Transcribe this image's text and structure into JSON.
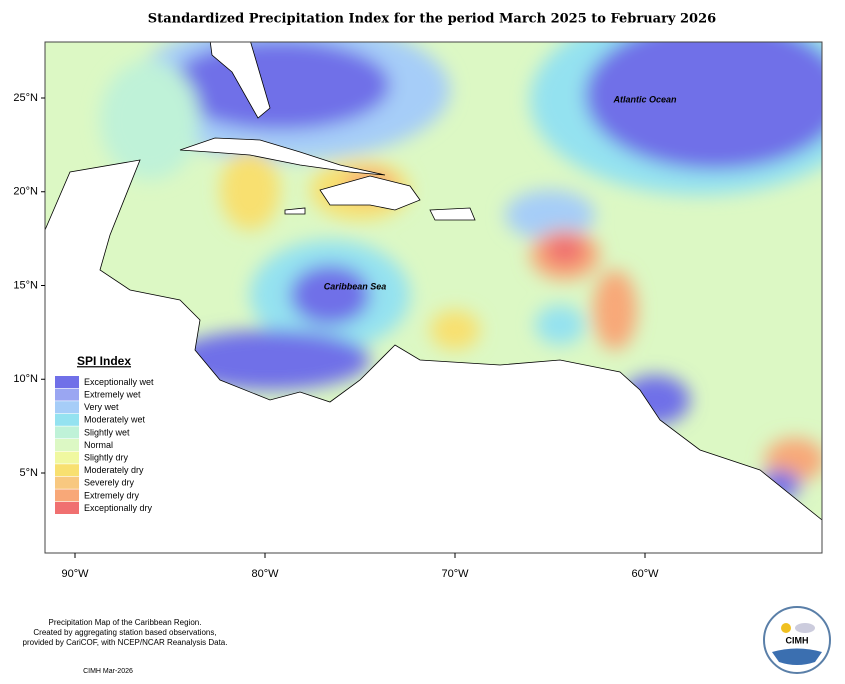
{
  "title": "Standardized Precipitation Index for the period March 2025 to February 2026",
  "map_labels": {
    "ocean": "Atlantic Ocean",
    "sea": "Caribbean Sea"
  },
  "latitude_labels": [
    "25°N",
    "20°N",
    "15°N",
    "10°N",
    "5°N"
  ],
  "longitude_labels": [
    "90°W",
    "80°W",
    "70°W",
    "60°W"
  ],
  "legend": {
    "title": "SPI Index",
    "items": [
      {
        "label": "Exceptionally wet",
        "color": "#7070e8"
      },
      {
        "label": "Extremely wet",
        "color": "#9aa6f2"
      },
      {
        "label": "Very wet",
        "color": "#a6cdf8"
      },
      {
        "label": "Moderately wet",
        "color": "#94e2f0"
      },
      {
        "label": "Slightly wet",
        "color": "#bff2d8"
      },
      {
        "label": "Normal",
        "color": "#dcf8c4"
      },
      {
        "label": "Slightly dry",
        "color": "#f0f8a0"
      },
      {
        "label": "Moderately dry",
        "color": "#f8e070"
      },
      {
        "label": "Severely dry",
        "color": "#f8c880"
      },
      {
        "label": "Extremely dry",
        "color": "#f8a878"
      },
      {
        "label": "Exceptionally dry",
        "color": "#f07070"
      }
    ]
  },
  "footer": {
    "lines": [
      "Precipitation Map of the Caribbean Region.",
      "Created by aggregating station based observations,",
      "provided by CariCOF, with NCEP/NCAR Reanalysis Data."
    ],
    "stamp": "CIMH Mar-2026"
  },
  "logo": {
    "text": "CIMH"
  }
}
